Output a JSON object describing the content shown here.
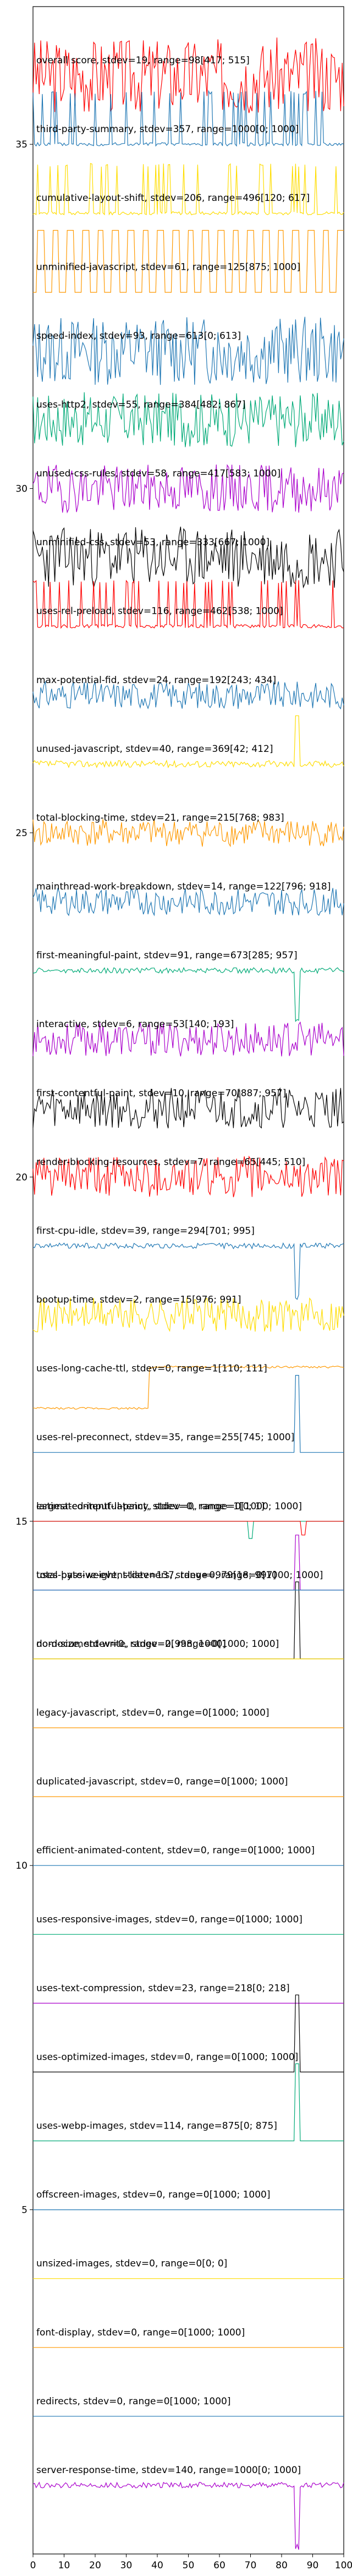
{
  "chart_data": {
    "type": "line",
    "title": "",
    "xlabel": "",
    "ylabel": "",
    "xlim": [
      0,
      100
    ],
    "ylim": [
      0,
      37
    ],
    "grid": false,
    "x_ticks": [
      "0",
      "10",
      "20",
      "30",
      "40",
      "50",
      "60",
      "70",
      "80",
      "90",
      "100"
    ],
    "y_ticks": [
      "5",
      "10",
      "15",
      "20",
      "25",
      "30",
      "35"
    ],
    "series": [
      {
        "label": "overall score, stdev=19, range=98[417; 515]",
        "color": "#ff0000",
        "baseline": 36,
        "amp": 0.55,
        "pattern": "noise",
        "seed": 3
      },
      {
        "label": "third-party-summary, stdev=357, range=1000[0; 1000]",
        "color": "#1f77b4",
        "baseline": 35,
        "amp": 0.75,
        "pattern": "pulses",
        "seed": 5
      },
      {
        "label": "cumulative-layout-shift, stdev=206, range=496[120; 617]",
        "color": "#ffdd00",
        "baseline": 34,
        "amp": 0.7,
        "pattern": "pulses",
        "seed": 7
      },
      {
        "label": "unminified-javascript, stdev=61, range=125[875; 1000]",
        "color": "#ff9900",
        "baseline": 33,
        "amp": 0.75,
        "pattern": "dense",
        "seed": 11
      },
      {
        "label": "speed-index, stdev=93, range=613[0; 613]",
        "color": "#1f77b4",
        "baseline": 32,
        "amp": 0.5,
        "pattern": "noise",
        "seed": 13
      },
      {
        "label": "uses-http2, stdev=55, range=384[482; 867]",
        "color": "#00aa77",
        "baseline": 31,
        "amp": 0.4,
        "pattern": "noise",
        "seed": 17
      },
      {
        "label": "unused-css-rules, stdev=58, range=417[583; 1000]",
        "color": "#aa00cc",
        "baseline": 30,
        "amp": 0.35,
        "pattern": "noise",
        "seed": 19
      },
      {
        "label": "unminified-css, stdev=53, range=333[667; 1000]",
        "color": "#000000",
        "baseline": 29,
        "amp": 0.45,
        "pattern": "noise",
        "seed": 23
      },
      {
        "label": "uses-rel-preload, stdev=116, range=462[538; 1000]",
        "color": "#ff0000",
        "baseline": 28,
        "amp": 0.65,
        "pattern": "pulses",
        "seed": 29
      },
      {
        "label": "max-potential-fid, stdev=24, range=192[243; 434]",
        "color": "#1f77b4",
        "baseline": 27,
        "amp": 0.2,
        "pattern": "noise",
        "seed": 31
      },
      {
        "label": "unused-javascript, stdev=40, range=369[42; 412]",
        "color": "#ffdd00",
        "baseline": 26,
        "amp": 0.35,
        "pattern": "spike",
        "seed": 37
      },
      {
        "label": "total-blocking-time, stdev=21, range=215[768; 983]",
        "color": "#ff9900",
        "baseline": 25,
        "amp": 0.2,
        "pattern": "noise",
        "seed": 41
      },
      {
        "label": "mainthread-work-breakdown, stdev=14, range=122[796; 918]",
        "color": "#1f77b4",
        "baseline": 24,
        "amp": 0.2,
        "pattern": "noise",
        "seed": 43
      },
      {
        "label": "first-meaningful-paint, stdev=91, range=673[285; 957]",
        "color": "#00aa77",
        "baseline": 23,
        "amp": 0.5,
        "pattern": "spikedown",
        "seed": 47
      },
      {
        "label": "interactive, stdev=6, range=53[140; 193]",
        "color": "#aa00cc",
        "baseline": 22,
        "amp": 0.25,
        "pattern": "noise",
        "seed": 53
      },
      {
        "label": "first-contentful-paint, stdev=10, range=70[887; 957]",
        "color": "#000000",
        "baseline": 21,
        "amp": 0.3,
        "pattern": "noise",
        "seed": 59
      },
      {
        "label": "render-blocking-resources, stdev=7, range=65[445; 510]",
        "color": "#ff0000",
        "baseline": 20,
        "amp": 0.3,
        "pattern": "noise",
        "seed": 61
      },
      {
        "label": "first-cpu-idle, stdev=39, range=294[701; 995]",
        "color": "#1f77b4",
        "baseline": 19,
        "amp": 0.5,
        "pattern": "spikedown",
        "seed": 67
      },
      {
        "label": "bootup-time, stdev=2, range=15[976; 991]",
        "color": "#ffdd00",
        "baseline": 18,
        "amp": 0.25,
        "pattern": "noise",
        "seed": 71
      },
      {
        "label": "uses-long-cache-ttl, stdev=0, range=1[110; 111]",
        "color": "#ff9900",
        "baseline": 17,
        "amp": 0.6,
        "pattern": "step",
        "seed": 73
      },
      {
        "label": "uses-rel-preconnect, stdev=35, range=255[745; 1000]",
        "color": "#1f77b4",
        "baseline": 16,
        "amp": 0.7,
        "pattern": "spikeup",
        "seed": 79
      },
      {
        "label": "largest-contentful-paint, stdev=0, range=1[0; 1]",
        "color": "#00aa77",
        "baseline": 15,
        "amp": 0.25,
        "pattern": "flatspike",
        "seed": 83
      },
      {
        "label": "total-byte-weight, stdev=137, range=979[18; 997]",
        "color": "#aa00cc",
        "baseline": 14,
        "amp": 0.5,
        "pattern": "spikeup",
        "seed": 89
      },
      {
        "label": "dom-size, stdev=0, range=2[998; 1000]",
        "color": "#000000",
        "baseline": 13,
        "amp": 0.7,
        "pattern": "spikeup",
        "seed": 97
      },
      {
        "label": "estimated-input-latency, stdev=0, range=0[1000; 1000]",
        "color": "#ff0000",
        "baseline": 15,
        "amp": 0.2,
        "pattern": "flatdip",
        "seed": 101
      },
      {
        "label": "uses-passive-event-listeners, stdev=0, range=0[1000; 1000]",
        "color": "#1f77b4",
        "baseline": 14,
        "amp": 0,
        "pattern": "flat",
        "seed": 103
      },
      {
        "label": "no-document-write, stdev=0, range=0[1000; 1000]",
        "color": "#ffdd00",
        "baseline": 13,
        "amp": 0,
        "pattern": "flat",
        "seed": 107
      },
      {
        "label": "legacy-javascript, stdev=0, range=0[1000; 1000]",
        "color": "#ff9900",
        "baseline": 12,
        "amp": 0,
        "pattern": "flat",
        "seed": 109
      },
      {
        "label": "duplicated-javascript, stdev=0, range=0[1000; 1000]",
        "color": "#ff9900",
        "baseline": 11,
        "amp": 0,
        "pattern": "flat",
        "seed": 113
      },
      {
        "label": "efficient-animated-content, stdev=0, range=0[1000; 1000]",
        "color": "#1f77b4",
        "baseline": 10,
        "amp": 0,
        "pattern": "flat",
        "seed": 127
      },
      {
        "label": "uses-responsive-images, stdev=0, range=0[1000; 1000]",
        "color": "#00aa77",
        "baseline": 9,
        "amp": 0,
        "pattern": "flat",
        "seed": 131
      },
      {
        "label": "uses-text-compression, stdev=23, range=218[0; 218]",
        "color": "#aa00cc",
        "baseline": 8,
        "amp": 0,
        "pattern": "flat",
        "seed": 137
      },
      {
        "label": "uses-optimized-images, stdev=0, range=0[1000; 1000]",
        "color": "#000000",
        "baseline": 7,
        "amp": 0.7,
        "pattern": "spikeup",
        "seed": 139
      },
      {
        "label": "uses-webp-images, stdev=114, range=875[0; 875]",
        "color": "#00aa77",
        "baseline": 6,
        "amp": 0.7,
        "pattern": "spikeup",
        "seed": 149
      },
      {
        "label": "offscreen-images, stdev=0, range=0[1000; 1000]",
        "color": "#1f77b4",
        "baseline": 5,
        "amp": 0,
        "pattern": "flat",
        "seed": 151
      },
      {
        "label": "unsized-images, stdev=0, range=0[0; 0]",
        "color": "#ffdd00",
        "baseline": 4,
        "amp": 0,
        "pattern": "flat",
        "seed": 157
      },
      {
        "label": "font-display, stdev=0, range=0[1000; 1000]",
        "color": "#ff9900",
        "baseline": 3,
        "amp": 0,
        "pattern": "flat",
        "seed": 163
      },
      {
        "label": "redirects, stdev=0, range=0[1000; 1000]",
        "color": "#1f77b4",
        "baseline": 2,
        "amp": 0,
        "pattern": "flat",
        "seed": 167
      },
      {
        "label": "server-response-time, stdev=140, range=1000[0; 1000]",
        "color": "#aa00cc",
        "baseline": 1,
        "amp": 0.6,
        "pattern": "spikedown",
        "seed": 173
      }
    ]
  }
}
